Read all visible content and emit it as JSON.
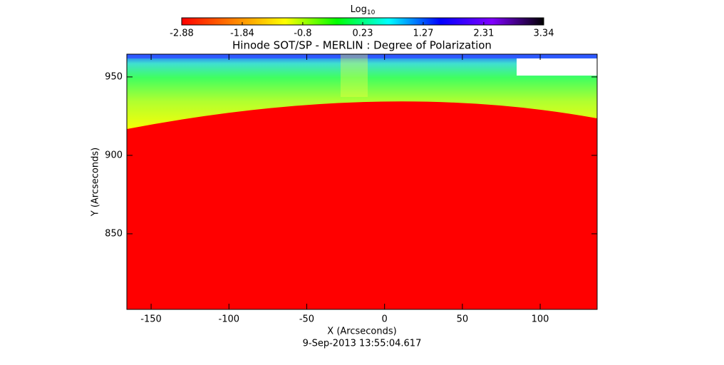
{
  "chart_data": {
    "type": "image",
    "title": "Hinode SOT/SP - MERLIN : Degree of Polarization",
    "x_label": "X (Arcseconds)",
    "y_label": "Y (Arcseconds)",
    "footer": "9-Sep-2013 13:55:04.617",
    "xlim": [
      -165.6,
      136.6
    ],
    "ylim": [
      801.8,
      964.5
    ],
    "xticks": [
      -150,
      -100,
      -50,
      0,
      50,
      100
    ],
    "yticks": [
      850,
      900,
      950
    ],
    "colorbar": {
      "label": "Log",
      "label_subscript": "10",
      "lim": [
        -2.88,
        3.34
      ],
      "ticks": [
        -2.88,
        -1.84,
        -0.8,
        0.23,
        1.27,
        2.31,
        3.34
      ],
      "colormap": [
        "#ff0000",
        "#ff8000",
        "#ffff00",
        "#00ff00",
        "#00ffff",
        "#0000ff",
        "#8000ff",
        "#000000"
      ]
    }
  }
}
